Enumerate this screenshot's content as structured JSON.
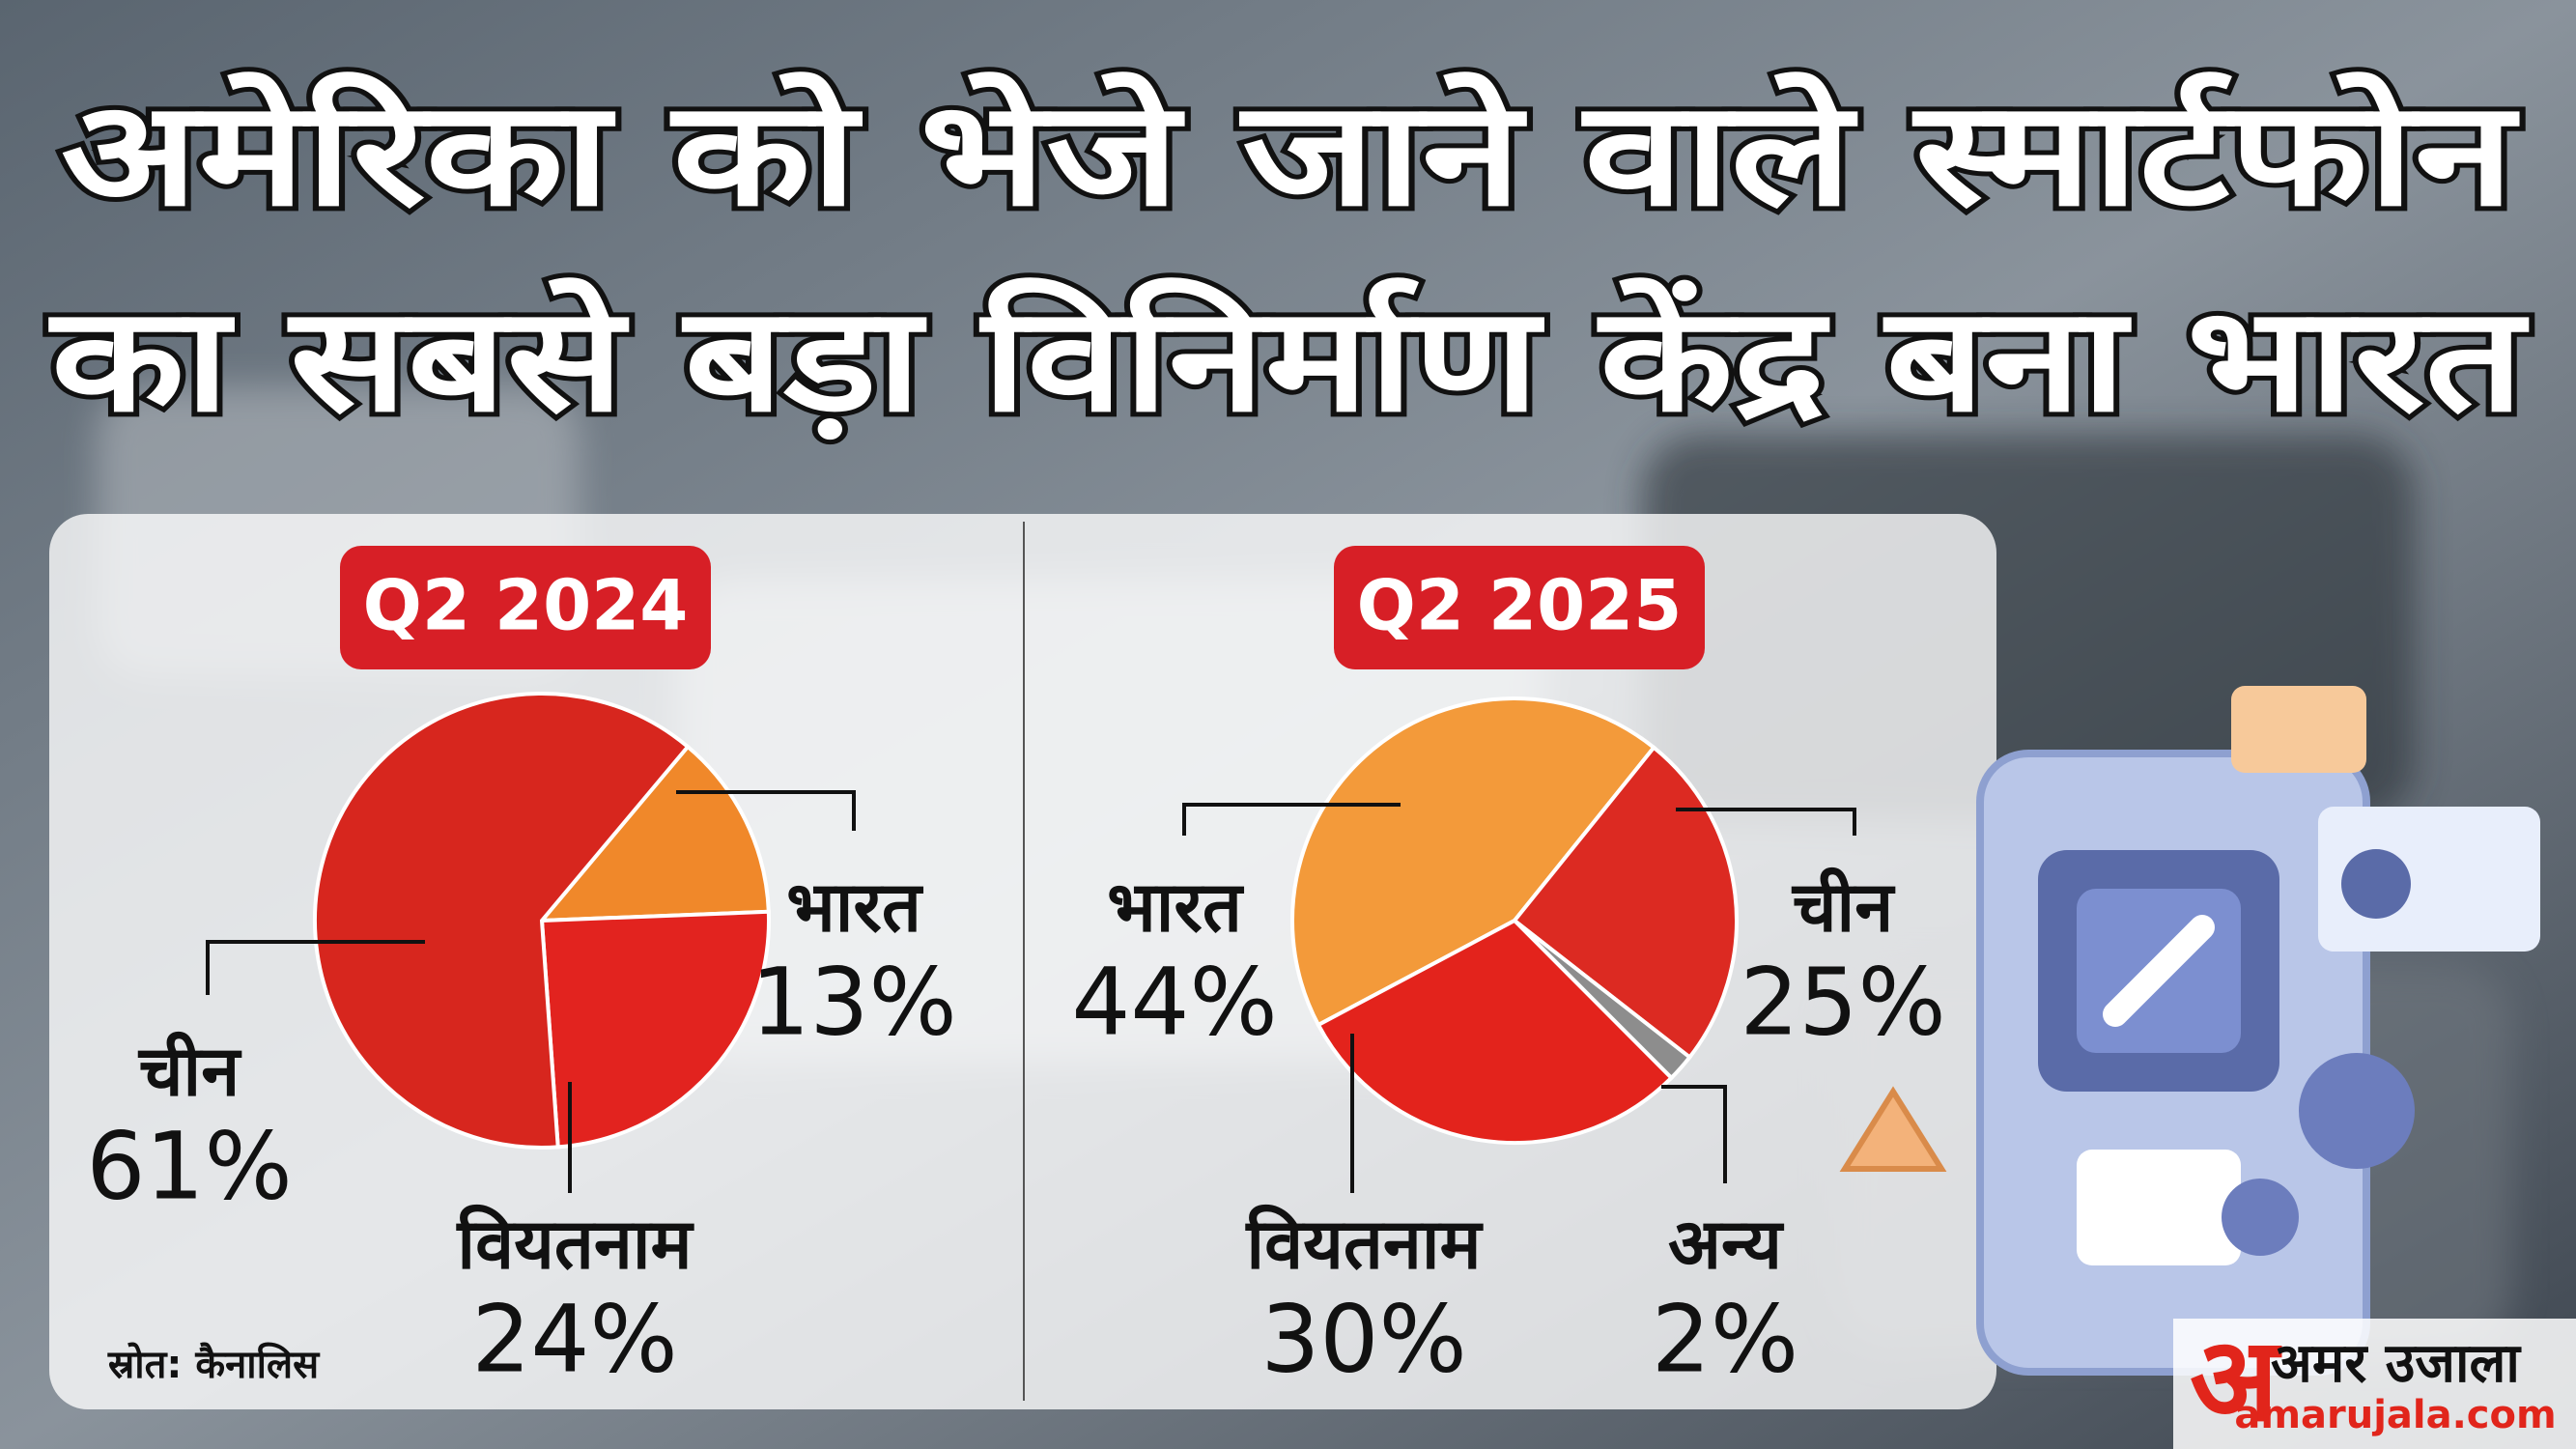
{
  "header": {
    "title_lines": [
      "अमेरिका को भेजे जाने वाले स्मार्टफोन",
      "का सबसे बड़ा विनिर्माण केंद्र बना भारत"
    ]
  },
  "chart_data": [
    {
      "type": "pie",
      "title": "Q2 2024",
      "categories": [
        "भारत",
        "वियतनाम",
        "चीन"
      ],
      "values": [
        13,
        24,
        61
      ],
      "value_labels": [
        "13%",
        "24%",
        "61%"
      ],
      "colors": [
        "#f0882a",
        "#e2231f",
        "#d7261e"
      ]
    },
    {
      "type": "pie",
      "title": "Q2 2025",
      "categories": [
        "भारत",
        "चीन",
        "अन्य",
        "वियतनाम"
      ],
      "values": [
        44,
        25,
        2,
        30
      ],
      "value_labels": [
        "44%",
        "25%",
        "2%",
        "30%"
      ],
      "colors": [
        "#f39a3a",
        "#dc2a22",
        "#8d8d8d",
        "#e3231c"
      ]
    }
  ],
  "source": "स्रोत: कैनालिस",
  "logo": {
    "mark": "अ",
    "name": "अमर उजाला",
    "site": "amarujala.com"
  }
}
